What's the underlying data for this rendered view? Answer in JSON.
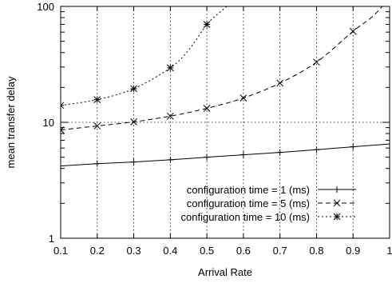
{
  "chart_data": {
    "type": "line",
    "xlabel": "Arrival Rate",
    "ylabel": "mean transfer delay",
    "xlim": [
      0.1,
      1
    ],
    "ylim": [
      1,
      100
    ],
    "yscale": "log",
    "grid": true,
    "legend_position": "bottom-right",
    "x_ticks": [
      "0.1",
      "0.2",
      "0.3",
      "0.4",
      "0.5",
      "0.6",
      "0.7",
      "0.8",
      "0.9",
      "1"
    ],
    "y_ticks": [
      {
        "value": 1,
        "label": "1"
      },
      {
        "value": 10,
        "label": "10"
      },
      {
        "value": 100,
        "label": "100"
      }
    ],
    "series": [
      {
        "name": "configuration time = 1 (ms)",
        "line_style": "solid",
        "marker": "plus",
        "x": [
          0.1,
          0.2,
          0.3,
          0.4,
          0.5,
          0.6,
          0.7,
          0.8,
          0.9,
          1.0
        ],
        "y": [
          4.2,
          4.4,
          4.55,
          4.75,
          5.0,
          5.25,
          5.5,
          5.8,
          6.15,
          6.5
        ],
        "marker_x": [
          0.2,
          0.3,
          0.4,
          0.5,
          0.6,
          0.7,
          0.8,
          0.9
        ]
      },
      {
        "name": "configuration time = 5 (ms)",
        "line_style": "dashed",
        "marker": "cross",
        "x": [
          0.1,
          0.2,
          0.3,
          0.4,
          0.5,
          0.6,
          0.7,
          0.8,
          0.9,
          0.95,
          0.98
        ],
        "y": [
          8.6,
          9.3,
          10.1,
          11.3,
          13.2,
          16.2,
          21.8,
          33.0,
          61.0,
          80.0,
          100
        ],
        "marker_x": [
          0.1,
          0.2,
          0.3,
          0.4,
          0.5,
          0.6,
          0.7,
          0.8,
          0.9
        ]
      },
      {
        "name": "configuration time = 10 (ms)",
        "line_style": "dotted",
        "marker": "star",
        "x": [
          0.1,
          0.2,
          0.3,
          0.4,
          0.45,
          0.5,
          0.53,
          0.555
        ],
        "y": [
          14.0,
          15.7,
          19.5,
          29.5,
          42.0,
          70.0,
          86.0,
          100
        ],
        "marker_x": [
          0.1,
          0.2,
          0.3,
          0.4,
          0.5
        ]
      }
    ]
  }
}
